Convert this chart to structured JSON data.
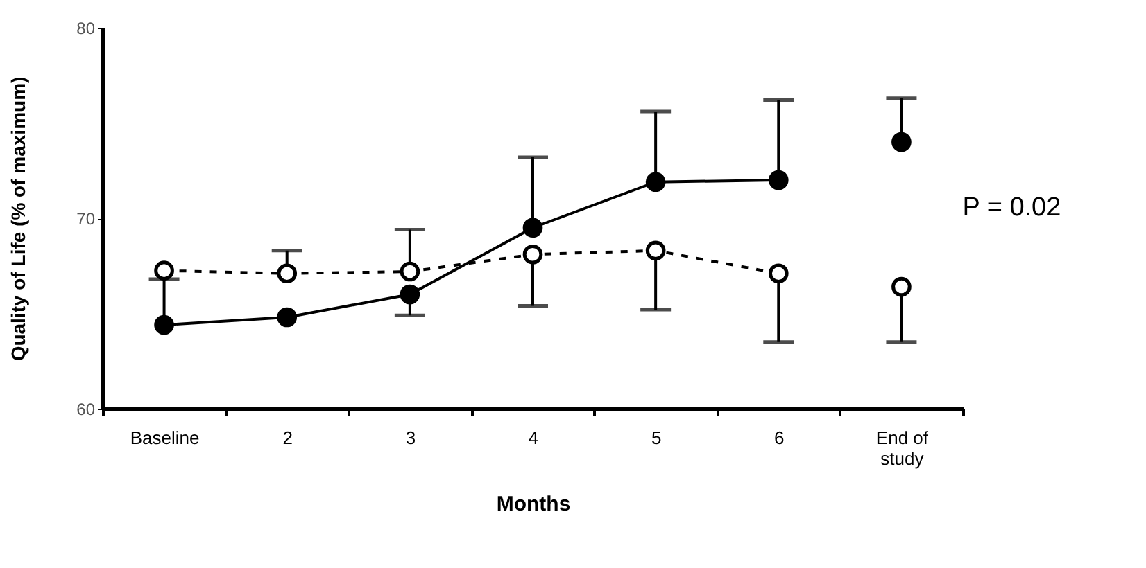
{
  "chart_data": {
    "type": "line",
    "xlabel": "Months",
    "ylabel": "Quality of Life (% of maximum)",
    "categories": [
      "Baseline",
      "2",
      "3",
      "4",
      "5",
      "6",
      "End of study"
    ],
    "series": [
      {
        "color": "#000000",
        "marker": "circle",
        "line_style": "solid",
        "values": [
          64.4,
          64.8,
          66.0,
          69.5,
          71.9,
          72.0,
          null
        ],
        "errors": [
          [
            64.4,
            66.8
          ],
          null,
          [
            64.9,
            66.0
          ],
          [
            69.5,
            73.2
          ],
          [
            71.9,
            75.6
          ],
          [
            72.0,
            76.2
          ],
          null
        ]
      },
      {
        "color": "#ffffff",
        "marker": "circle",
        "line_style": "dashed",
        "values": [
          67.25,
          67.1,
          67.2,
          68.1,
          68.3,
          67.1,
          null
        ],
        "errors": [
          null,
          [
            67.1,
            68.3
          ],
          [
            67.2,
            69.4
          ],
          [
            65.4,
            68.1
          ],
          [
            65.2,
            68.3
          ],
          [
            63.5,
            67.1
          ],
          null
        ]
      },
      {
        "type": "scatter",
        "color": "#000000",
        "x": [
          "End of study"
        ],
        "values": [
          74.0
        ],
        "errors": [
          [
            74.0,
            76.3
          ]
        ]
      },
      {
        "type": "scatter",
        "color": "#ffffff",
        "x": [
          "End of study"
        ],
        "values": [
          66.4
        ],
        "errors": [
          [
            63.5,
            66.4
          ]
        ]
      }
    ],
    "ylim": [
      60,
      80
    ],
    "yticks": [
      60,
      70,
      80
    ],
    "grid": false,
    "annotations": [
      "P = 0.02"
    ]
  }
}
